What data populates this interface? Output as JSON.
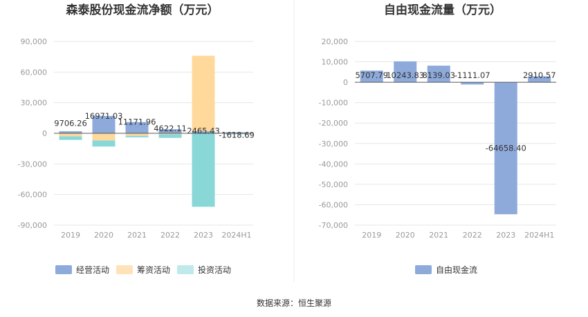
{
  "source_text": "数据来源：恒生聚源",
  "chart_data": [
    {
      "type": "bar",
      "stacked": true,
      "title": "森泰股份现金流净额（万元）",
      "categories": [
        "2019",
        "2020",
        "2021",
        "2022",
        "2023",
        "2024H1"
      ],
      "ylim": [
        -90000,
        90000
      ],
      "yticks": [
        90000,
        60000,
        30000,
        0,
        -30000,
        -60000,
        -90000
      ],
      "ytick_labels": [
        "90,000",
        "60,000",
        "30,000",
        "0",
        "-30,000",
        "-60,000",
        "-90,000"
      ],
      "grid": true,
      "legend_position": "bottom",
      "series": [
        {
          "name": "经营活动",
          "color": "#8eaadb",
          "values": [
            2000,
            17000,
            11000,
            4000,
            2000,
            1000
          ]
        },
        {
          "name": "筹资活动",
          "color": "#ffd99b",
          "values": [
            -3000,
            -7000,
            -2500,
            -1000,
            74000,
            -500
          ]
        },
        {
          "name": "投资活动",
          "color": "#8ad7d8",
          "values": [
            -3500,
            -6000,
            -1500,
            -3500,
            -72000,
            -500
          ]
        }
      ],
      "data_labels": [
        "9706.26",
        "16971.03",
        "11171.96",
        "4622.11",
        "2465.43",
        "-1618.69"
      ],
      "data_label_values": [
        9706.26,
        16971.03,
        11171.96,
        4622.11,
        2465.43,
        -1618.69
      ]
    },
    {
      "type": "bar",
      "title": "自由现金流量（万元）",
      "categories": [
        "2019",
        "2020",
        "2021",
        "2022",
        "2023",
        "2024H1"
      ],
      "ylim": [
        -70000,
        20000
      ],
      "yticks": [
        20000,
        10000,
        0,
        -10000,
        -20000,
        -30000,
        -40000,
        -50000,
        -60000,
        -70000
      ],
      "ytick_labels": [
        "20,000",
        "10,000",
        "0",
        "-10,000",
        "-20,000",
        "-30,000",
        "-40,000",
        "-50,000",
        "-60,000",
        "-70,000"
      ],
      "grid": true,
      "legend_position": "bottom",
      "series": [
        {
          "name": "自由现金流",
          "color": "#8eaadb",
          "values": [
            5707.79,
            10243.83,
            8139.03,
            -1111.07,
            -64658.4,
            2910.57
          ]
        }
      ],
      "data_labels": [
        "5707.79",
        "10243.83",
        "8139.03",
        "-1111.07",
        "-64658.40",
        "2910.57"
      ]
    }
  ]
}
